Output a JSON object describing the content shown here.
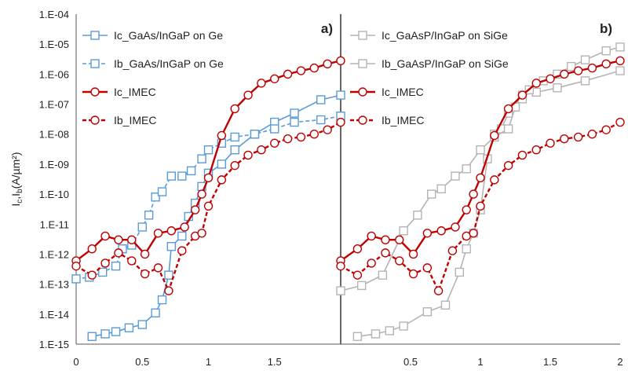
{
  "chart_data": {
    "type": "line",
    "ylabel": "Ic,Ib(A/µm²)",
    "yscale": "log",
    "ylim": [
      "1.E-15",
      "1.E-04"
    ],
    "ytick_labels": [
      "1.E-15",
      "1.E-14",
      "1.E-13",
      "1.E-12",
      "1.E-11",
      "1.E-10",
      "1.E-09",
      "1.E-08",
      "1.E-07",
      "1.E-06",
      "1.E-05",
      "1.E-04"
    ],
    "grid": false,
    "panels": [
      {
        "tag": "a)",
        "xlim": [
          0,
          2
        ],
        "xtick_labels": [
          "0",
          "0.5",
          "1",
          "1.5"
        ],
        "legend_placement": "top-left",
        "series": [
          {
            "name": "Ic_GaAs/InGaP on Ge",
            "color": "#5b9bd5",
            "dash": false,
            "marker": "square",
            "points": [
              [
                0.12,
                1.8e-15
              ],
              [
                0.22,
                2.2e-15
              ],
              [
                0.3,
                2.6e-15
              ],
              [
                0.4,
                3.5e-15
              ],
              [
                0.5,
                4.5e-15
              ],
              [
                0.6,
                1.1e-14
              ],
              [
                0.65,
                3e-14
              ],
              [
                0.7,
                2e-13
              ],
              [
                0.72,
                1.8e-12
              ],
              [
                0.8,
                4e-12
              ],
              [
                0.85,
                1.8e-11
              ],
              [
                0.9,
                5e-11
              ],
              [
                0.95,
                1.8e-10
              ],
              [
                1.0,
                5e-10
              ],
              [
                1.1,
                1e-09
              ],
              [
                1.2,
                3e-09
              ],
              [
                1.35,
                1e-08
              ],
              [
                1.5,
                2.5e-08
              ],
              [
                1.65,
                5e-08
              ],
              [
                1.85,
                1.4e-07
              ],
              [
                2.0,
                2e-07
              ]
            ]
          },
          {
            "name": "Ib_GaAs/InGaP on Ge",
            "color": "#5b9bd5",
            "dash": true,
            "marker": "square",
            "points": [
              [
                0.0,
                1.5e-13
              ],
              [
                0.1,
                1.7e-13
              ],
              [
                0.2,
                2.5e-13
              ],
              [
                0.3,
                4e-13
              ],
              [
                0.35,
                1.5e-12
              ],
              [
                0.42,
                2e-12
              ],
              [
                0.5,
                8e-12
              ],
              [
                0.55,
                2e-11
              ],
              [
                0.6,
                8e-11
              ],
              [
                0.65,
                1.2e-10
              ],
              [
                0.72,
                4e-10
              ],
              [
                0.8,
                4e-10
              ],
              [
                0.87,
                6e-10
              ],
              [
                0.95,
                1.5e-09
              ],
              [
                1.0,
                3e-09
              ],
              [
                1.1,
                5e-09
              ],
              [
                1.2,
                8e-09
              ],
              [
                1.35,
                1e-08
              ],
              [
                1.5,
                1.5e-08
              ],
              [
                1.65,
                2.5e-08
              ],
              [
                1.85,
                3e-08
              ],
              [
                2.0,
                4e-08
              ]
            ]
          },
          {
            "name": "Ic_IMEC",
            "color": "#c00000",
            "dash": false,
            "marker": "circle",
            "points": [
              [
                0.0,
                6e-13
              ],
              [
                0.12,
                1.5e-12
              ],
              [
                0.22,
                4e-12
              ],
              [
                0.32,
                3e-12
              ],
              [
                0.42,
                3e-12
              ],
              [
                0.52,
                1e-12
              ],
              [
                0.62,
                5e-12
              ],
              [
                0.72,
                6e-12
              ],
              [
                0.82,
                8e-12
              ],
              [
                0.9,
                3e-11
              ],
              [
                0.95,
                1e-10
              ],
              [
                1.0,
                3.5e-10
              ],
              [
                1.1,
                9e-09
              ],
              [
                1.2,
                7e-08
              ],
              [
                1.3,
                2e-07
              ],
              [
                1.4,
                5e-07
              ],
              [
                1.5,
                7e-07
              ],
              [
                1.6,
                1e-06
              ],
              [
                1.7,
                1.3e-06
              ],
              [
                1.8,
                1.6e-06
              ],
              [
                1.9,
                2.2e-06
              ],
              [
                2.0,
                2.8e-06
              ]
            ]
          },
          {
            "name": "Ib_IMEC",
            "color": "#c00000",
            "dash": true,
            "marker": "circle",
            "points": [
              [
                0.0,
                4e-13
              ],
              [
                0.12,
                2e-13
              ],
              [
                0.22,
                5e-13
              ],
              [
                0.32,
                1.1e-12
              ],
              [
                0.42,
                6e-13
              ],
              [
                0.52,
                2.2e-13
              ],
              [
                0.62,
                3.5e-13
              ],
              [
                0.7,
                6e-14
              ],
              [
                0.8,
                1.3e-12
              ],
              [
                0.9,
                4e-12
              ],
              [
                0.95,
                5e-12
              ],
              [
                1.0,
                4e-11
              ],
              [
                1.1,
                3e-10
              ],
              [
                1.2,
                9e-10
              ],
              [
                1.3,
                2e-09
              ],
              [
                1.4,
                3e-09
              ],
              [
                1.5,
                5e-09
              ],
              [
                1.6,
                7e-09
              ],
              [
                1.7,
                8e-09
              ],
              [
                1.8,
                1e-08
              ],
              [
                1.9,
                1.4e-08
              ],
              [
                2.0,
                2.5e-08
              ]
            ]
          }
        ]
      },
      {
        "tag": "b)",
        "xlim": [
          0,
          2
        ],
        "xtick_labels": [
          "0.5",
          "1",
          "1.5",
          "2"
        ],
        "legend_placement": "top-left",
        "series": [
          {
            "name": "Ic_GaAsP/InGaP on SiGe",
            "color": "#b4b4b4",
            "dash": false,
            "marker": "square",
            "points": [
              [
                0.12,
                1.8e-15
              ],
              [
                0.25,
                2.2e-15
              ],
              [
                0.35,
                2.8e-15
              ],
              [
                0.45,
                4e-15
              ],
              [
                0.62,
                1.2e-14
              ],
              [
                0.75,
                2e-14
              ],
              [
                0.85,
                2.5e-13
              ],
              [
                0.9,
                1.5e-12
              ],
              [
                0.95,
                5e-12
              ],
              [
                1.0,
                3e-11
              ],
              [
                1.05,
                1.5e-09
              ],
              [
                1.1,
                1e-08
              ],
              [
                1.15,
                1.5e-08
              ],
              [
                1.2,
                5e-08
              ],
              [
                1.3,
                2e-07
              ],
              [
                1.4,
                2.5e-07
              ],
              [
                1.55,
                3.5e-07
              ],
              [
                1.75,
                6e-07
              ],
              [
                2.0,
                1.3e-06
              ]
            ]
          },
          {
            "name": "Ib_GaAsP/InGaP on SiGe",
            "color": "#b4b4b4",
            "dash": false,
            "marker": "square",
            "points": [
              [
                0.0,
                6e-14
              ],
              [
                0.15,
                9e-14
              ],
              [
                0.3,
                2e-13
              ],
              [
                0.45,
                6e-12
              ],
              [
                0.55,
                2e-11
              ],
              [
                0.65,
                1e-10
              ],
              [
                0.72,
                1.5e-10
              ],
              [
                0.82,
                4e-10
              ],
              [
                0.9,
                7e-10
              ],
              [
                1.0,
                3e-09
              ],
              [
                1.1,
                8e-09
              ],
              [
                1.2,
                1.5e-08
              ],
              [
                1.25,
                8e-08
              ],
              [
                1.3,
                1.5e-07
              ],
              [
                1.35,
                3e-07
              ],
              [
                1.45,
                6e-07
              ],
              [
                1.55,
                1e-06
              ],
              [
                1.65,
                1.8e-06
              ],
              [
                1.75,
                3e-06
              ],
              [
                1.9,
                6e-06
              ],
              [
                2.0,
                8e-06
              ]
            ]
          },
          {
            "name": "Ic_IMEC",
            "color": "#c00000",
            "dash": false,
            "marker": "circle",
            "points": [
              [
                0.0,
                6e-13
              ],
              [
                0.12,
                1.5e-12
              ],
              [
                0.22,
                4e-12
              ],
              [
                0.32,
                3e-12
              ],
              [
                0.42,
                3e-12
              ],
              [
                0.52,
                1e-12
              ],
              [
                0.62,
                5e-12
              ],
              [
                0.72,
                6e-12
              ],
              [
                0.82,
                8e-12
              ],
              [
                0.9,
                3e-11
              ],
              [
                0.95,
                1e-10
              ],
              [
                1.0,
                3.5e-10
              ],
              [
                1.1,
                9e-09
              ],
              [
                1.2,
                7e-08
              ],
              [
                1.3,
                2e-07
              ],
              [
                1.4,
                5e-07
              ],
              [
                1.5,
                7e-07
              ],
              [
                1.6,
                1e-06
              ],
              [
                1.7,
                1.3e-06
              ],
              [
                1.8,
                1.6e-06
              ],
              [
                1.9,
                2.2e-06
              ],
              [
                2.0,
                2.8e-06
              ]
            ]
          },
          {
            "name": "Ib_IMEC",
            "color": "#c00000",
            "dash": true,
            "marker": "circle",
            "points": [
              [
                0.0,
                4e-13
              ],
              [
                0.12,
                2e-13
              ],
              [
                0.22,
                5e-13
              ],
              [
                0.32,
                1.1e-12
              ],
              [
                0.42,
                6e-13
              ],
              [
                0.52,
                2.2e-13
              ],
              [
                0.62,
                3.5e-13
              ],
              [
                0.7,
                6e-14
              ],
              [
                0.8,
                1.3e-12
              ],
              [
                0.9,
                4e-12
              ],
              [
                0.95,
                5e-12
              ],
              [
                1.0,
                4e-11
              ],
              [
                1.1,
                3e-10
              ],
              [
                1.2,
                9e-10
              ],
              [
                1.3,
                2e-09
              ],
              [
                1.4,
                3e-09
              ],
              [
                1.5,
                5e-09
              ],
              [
                1.6,
                7e-09
              ],
              [
                1.7,
                8e-09
              ],
              [
                1.8,
                1e-08
              ],
              [
                1.9,
                1.4e-08
              ],
              [
                2.0,
                2.5e-08
              ]
            ]
          }
        ]
      }
    ]
  }
}
